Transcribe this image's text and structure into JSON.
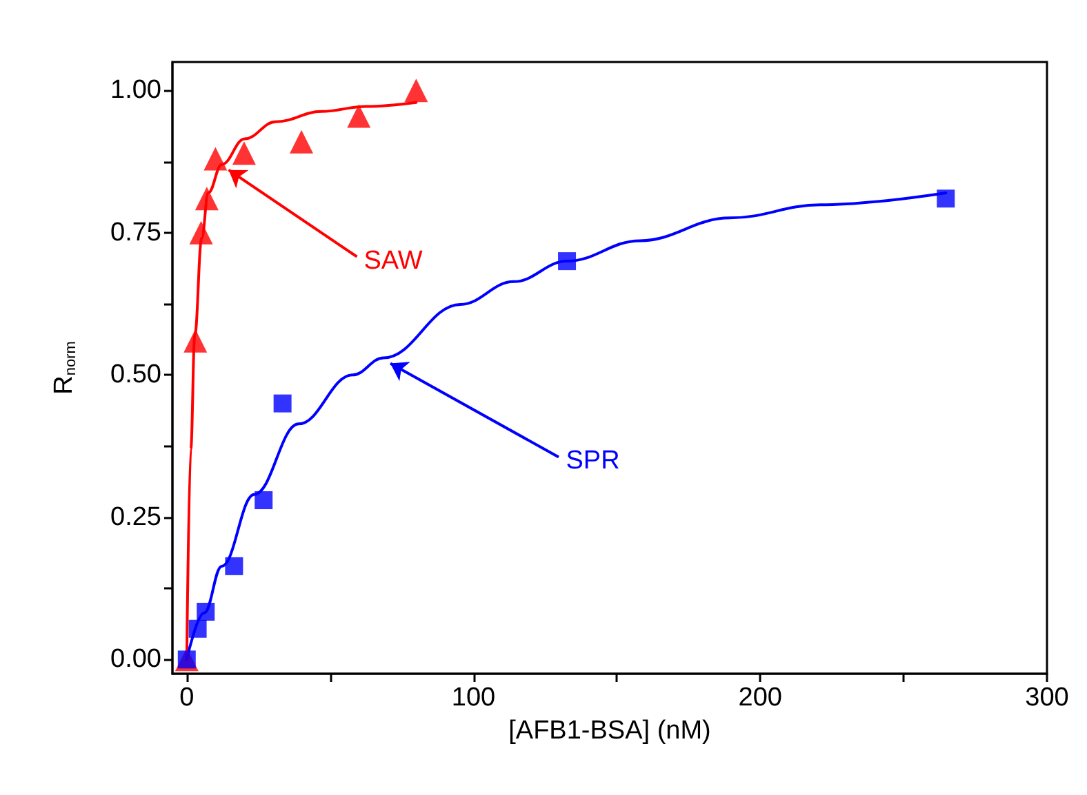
{
  "chart_data": {
    "type": "scatter",
    "xlabel": "[AFB1-BSA] (nM)",
    "ylabel": "R$_{norm}$",
    "xlim": [
      -5,
      300
    ],
    "ylim": [
      -0.025,
      1.05
    ],
    "xticks": [
      0,
      {
        "value": 50,
        "label": null
      },
      100,
      {
        "value": 150,
        "label": null
      },
      200,
      {
        "value": 250,
        "label": null
      },
      300
    ],
    "yticks": [
      {
        "value": 0,
        "label": "0.00"
      },
      {
        "value": 0.125,
        "label": null
      },
      {
        "value": 0.25,
        "label": "0.25"
      },
      {
        "value": 0.375,
        "label": null
      },
      {
        "value": 0.5,
        "label": "0.50"
      },
      {
        "value": 0.625,
        "label": null
      },
      {
        "value": 0.75,
        "label": "0.75"
      },
      {
        "value": 0.875,
        "label": null
      },
      {
        "value": 1,
        "label": "1.00"
      }
    ],
    "grid": false,
    "legend": false,
    "series": [
      {
        "name": "SAW",
        "marker": "triangle",
        "color": "#ff0000",
        "x": [
          0,
          3,
          5,
          7,
          10,
          20,
          40,
          60,
          80
        ],
        "values": [
          0,
          0.56,
          0.75,
          0.81,
          0.88,
          0.89,
          0.91,
          0.955,
          1.0
        ]
      },
      {
        "type": "line",
        "marker": "none",
        "color": "#ff0000",
        "x": [
          0,
          1.4,
          2.8,
          5.2,
          7.5,
          12.2,
          20.2,
          31,
          47,
          62.5,
          80
        ],
        "values": [
          0,
          0.37,
          0.57,
          0.74,
          0.82,
          0.87,
          0.915,
          0.945,
          0.963,
          0.972,
          0.979
        ]
      },
      {
        "name": "SPR",
        "marker": "square",
        "color": "#0000ff",
        "x": [
          0,
          3.8,
          6.6,
          16.5,
          26.8,
          33.4,
          132.6,
          264.7
        ],
        "values": [
          0,
          0.054,
          0.084,
          0.164,
          0.28,
          0.45,
          0.7,
          0.81
        ]
      },
      {
        "type": "line",
        "marker": "none",
        "color": "#0000ff",
        "x": [
          0,
          6.1,
          12.2,
          23.5,
          39,
          57.8,
          68.6,
          95.4,
          114,
          132.6,
          158,
          189.5,
          221,
          264.7
        ],
        "values": [
          0,
          0.082,
          0.164,
          0.29,
          0.414,
          0.5,
          0.53,
          0.624,
          0.664,
          0.7,
          0.736,
          0.776,
          0.799,
          0.82
        ]
      }
    ]
  }
}
